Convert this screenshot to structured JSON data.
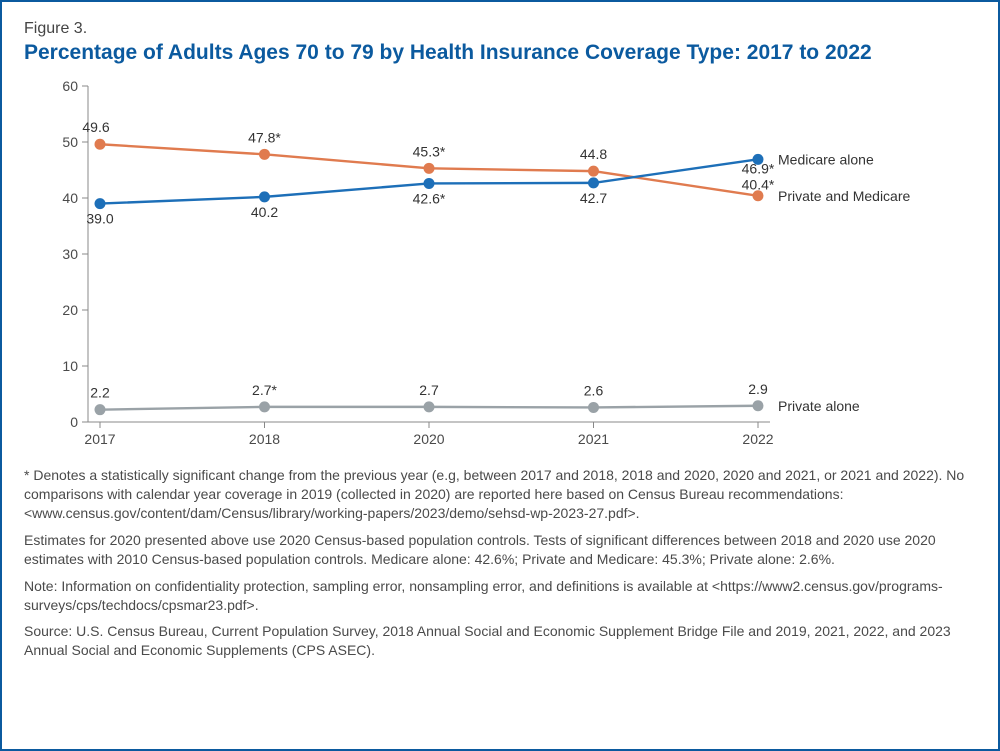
{
  "figure_label": "Figure 3.",
  "title": "Percentage of Adults Ages 70 to 79 by Health Insurance Coverage Type: 2017 to 2022",
  "chart": {
    "type": "line",
    "background_color": "#ffffff",
    "axis_color": "#888888",
    "tick_color": "#888888",
    "label_fontsize": 14,
    "lines": {
      "line_width": 2.4,
      "marker_radius": 5.5
    },
    "x": {
      "categories": [
        "2017",
        "2018",
        "2020",
        "2021",
        "2022"
      ]
    },
    "y": {
      "min": 0,
      "max": 60,
      "step": 10,
      "ticks": [
        "0",
        "10",
        "20",
        "30",
        "40",
        "50",
        "60"
      ]
    },
    "series": [
      {
        "name": "Private and Medicare",
        "color": "#e07b4f",
        "values": [
          49.6,
          47.8,
          45.3,
          44.8,
          40.4
        ],
        "value_labels": [
          "49.6",
          "47.8*",
          "45.3*",
          "44.8",
          "40.4*"
        ],
        "label_position": "above",
        "end_label": "Private and Medicare"
      },
      {
        "name": "Medicare alone",
        "color": "#1d6fb8",
        "values": [
          39.0,
          40.2,
          42.6,
          42.7,
          46.9
        ],
        "value_labels": [
          "39.0",
          "40.2",
          "42.6*",
          "42.7",
          "46.9*"
        ],
        "label_position": "below",
        "end_label": "Medicare alone"
      },
      {
        "name": "Private alone",
        "color": "#9aa2a7",
        "values": [
          2.2,
          2.7,
          2.7,
          2.6,
          2.9
        ],
        "value_labels": [
          "2.2",
          "2.7*",
          "2.7",
          "2.6",
          "2.9"
        ],
        "label_position": "above",
        "end_label": "Private alone"
      }
    ]
  },
  "footnotes": {
    "p1": "* Denotes a statistically significant change from the previous year (e.g, between 2017 and 2018, 2018 and 2020, 2020 and 2021, or 2021 and 2022). No comparisons with calendar year coverage in 2019 (collected in 2020) are reported here based on Census Bureau recommendations: <www.census.gov/content/dam/Census/library/working-papers/2023/demo/sehsd-wp-2023-27.pdf>.",
    "p2": "Estimates for 2020 presented above use 2020 Census-based population controls. Tests of significant differences between 2018 and 2020 use 2020 estimates with 2010 Census-based population controls. Medicare alone: 42.6%; Private and Medicare: 45.3%; Private alone: 2.6%.",
    "p3": "Note: Information on confidentiality protection, sampling error, nonsampling error, and definitions is available at <https://www2.census.gov/programs-surveys/cps/techdocs/cpsmar23.pdf>.",
    "p4": "Source: U.S. Census Bureau, Current Population Survey, 2018 Annual Social and Economic Supplement Bridge File and 2019, 2021, 2022, and 2023 Annual Social and Economic Supplements (CPS ASEC)."
  }
}
